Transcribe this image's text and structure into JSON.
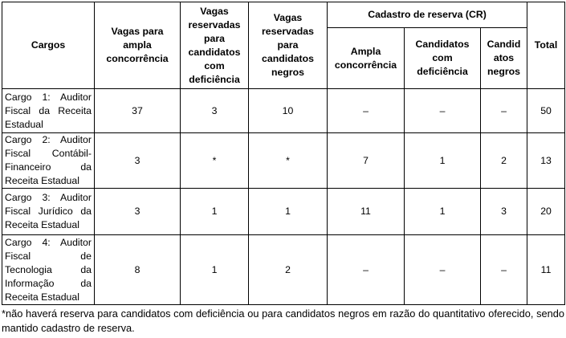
{
  "table": {
    "headers": {
      "cargos": "Cargos",
      "ampla": "Vagas para ampla concorrência",
      "deficiencia": "Vagas reservadas para candidatos com deficiência",
      "negros": "Vagas reservadas para candidatos negros",
      "cr": "Cadastro de reserva (CR)",
      "cr_ampla": "Ampla concorrência",
      "cr_deficiencia": "Candidatos com deficiência",
      "cr_negros": "Candid atos negros",
      "total": "Total"
    },
    "rows": [
      {
        "cargo": "Cargo 1: Auditor Fiscal da Receita Estadual",
        "ampla": "37",
        "deficiencia": "3",
        "negros": "10",
        "cr_ampla": "–",
        "cr_deficiencia": "–",
        "cr_negros": "–",
        "total": "50"
      },
      {
        "cargo": "Cargo 2: Auditor Fiscal Contábil-Financeiro da Receita Estadual",
        "ampla": "3",
        "deficiencia": "*",
        "negros": "*",
        "cr_ampla": "7",
        "cr_deficiencia": "1",
        "cr_negros": "2",
        "total": "13"
      },
      {
        "cargo": "Cargo 3: Auditor Fiscal Jurídico da Receita Estadual",
        "ampla": "3",
        "deficiencia": "1",
        "negros": "1",
        "cr_ampla": "11",
        "cr_deficiencia": "1",
        "cr_negros": "3",
        "total": "20"
      },
      {
        "cargo": "Cargo 4: Auditor Fiscal de Tecnologia da Informação da Receita Estadual",
        "ampla": "8",
        "deficiencia": "1",
        "negros": "2",
        "cr_ampla": "–",
        "cr_deficiencia": "–",
        "cr_negros": "–",
        "total": "11"
      }
    ]
  },
  "footnote": "*não haverá reserva para candidatos com deficiência ou para candidatos negros em razão do quantitativo oferecido, sendo mantido cadastro de reserva."
}
